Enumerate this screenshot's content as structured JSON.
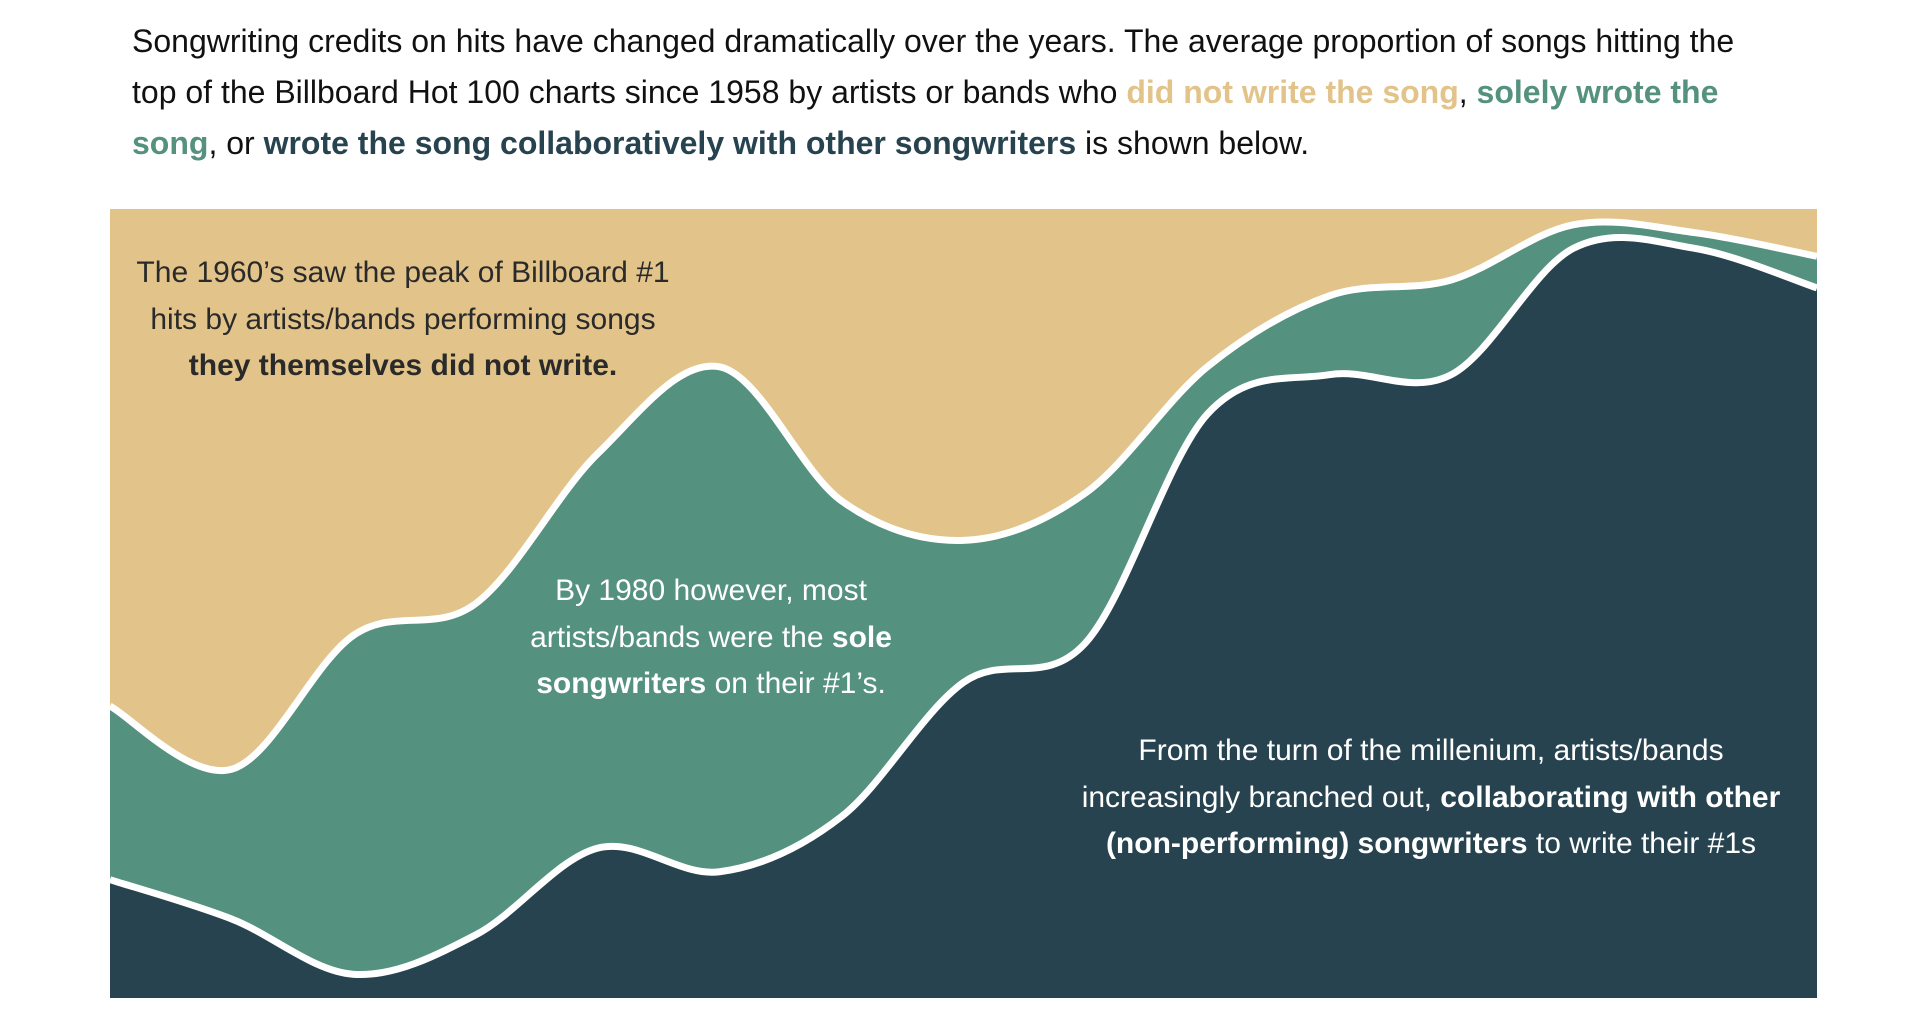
{
  "description": {
    "before": "Songwriting credits on hits have changed dramatically over the years. The average proportion of songs hitting the top of the Billboard Hot 100 charts since 1958 by artists or bands who ",
    "sep1": ",  ",
    "sep2": ", or ",
    "after": " is shown below."
  },
  "chart_data": {
    "type": "stacked-area",
    "categories": [
      null,
      null,
      null,
      null,
      null,
      null,
      null,
      null,
      null,
      null,
      null,
      null,
      null,
      null,
      null
    ],
    "ylim": [
      0,
      100
    ],
    "series": [
      {
        "name": "wrote the song collaboratively with other songwriters",
        "color": "#27434f",
        "values": [
          15,
          10,
          3,
          8,
          19,
          16,
          23,
          40,
          45,
          74,
          79,
          79,
          95,
          95,
          90
        ]
      },
      {
        "name": "solely wrote the song",
        "color": "#54917e",
        "values": [
          22,
          19,
          43,
          42,
          50,
          64,
          40,
          18,
          19,
          6,
          10,
          12,
          3,
          2,
          4
        ]
      },
      {
        "name": "did not write the song",
        "color": "#e2c38a",
        "values": [
          63,
          71,
          54,
          50,
          31,
          20,
          37,
          42,
          36,
          20,
          11,
          9,
          2,
          3,
          6
        ]
      }
    ],
    "annotations": [
      {
        "color": "#2a2a2a",
        "lines": [
          [
            {
              "text": "The 1960’s saw the peak of Billboard #1"
            }
          ],
          [
            {
              "text": "hits by artists/bands performing songs"
            }
          ],
          [
            {
              "text": "they themselves did not write.",
              "bold": true
            }
          ]
        ]
      },
      {
        "color": "#ffffff",
        "lines": [
          [
            {
              "text": "By 1980 however, most"
            }
          ],
          [
            {
              "text": "artists/bands were the "
            },
            {
              "text": "sole",
              "bold": true
            }
          ],
          [
            {
              "text": "songwriters",
              "bold": true
            },
            {
              "text": " on their #1’s."
            }
          ]
        ]
      },
      {
        "color": "#ffffff",
        "lines": [
          [
            {
              "text": "From the turn of the millenium, artists/bands"
            }
          ],
          [
            {
              "text": "increasingly branched out, "
            },
            {
              "text": "collaborating with other",
              "bold": true
            }
          ],
          [
            {
              "text": "(non-performing) songwriters",
              "bold": true
            },
            {
              "text": " to write their #1s"
            }
          ]
        ]
      }
    ]
  }
}
